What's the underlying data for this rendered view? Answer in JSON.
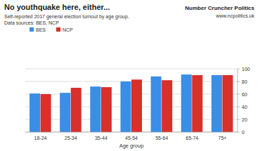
{
  "chart_data": {
    "type": "bar",
    "title": "No youthquake here, either...",
    "subtitle": "Self-reported 2017 general election turnout by age group.",
    "annotations": [
      "Data sources: BES, NCP",
      "Number Cruncher Politics",
      "www.ncpolitics.uk"
    ],
    "x_label": "Age group",
    "categories": [
      "18-24",
      "25-34",
      "35-44",
      "45-54",
      "55-64",
      "65-74",
      "75+"
    ],
    "series": [
      {
        "name": "BES",
        "color": "#3a8ee6",
        "values": [
          61,
          62,
          72,
          80,
          88,
          91,
          90
        ]
      },
      {
        "name": "NCP",
        "color": "#d8302b",
        "values": [
          60,
          70,
          71,
          83,
          82,
          90,
          90
        ]
      }
    ],
    "ylim": [
      0,
      100
    ],
    "yticks": [
      0,
      20,
      40,
      60,
      80,
      100
    ],
    "grid": true,
    "legend": "top-left"
  }
}
